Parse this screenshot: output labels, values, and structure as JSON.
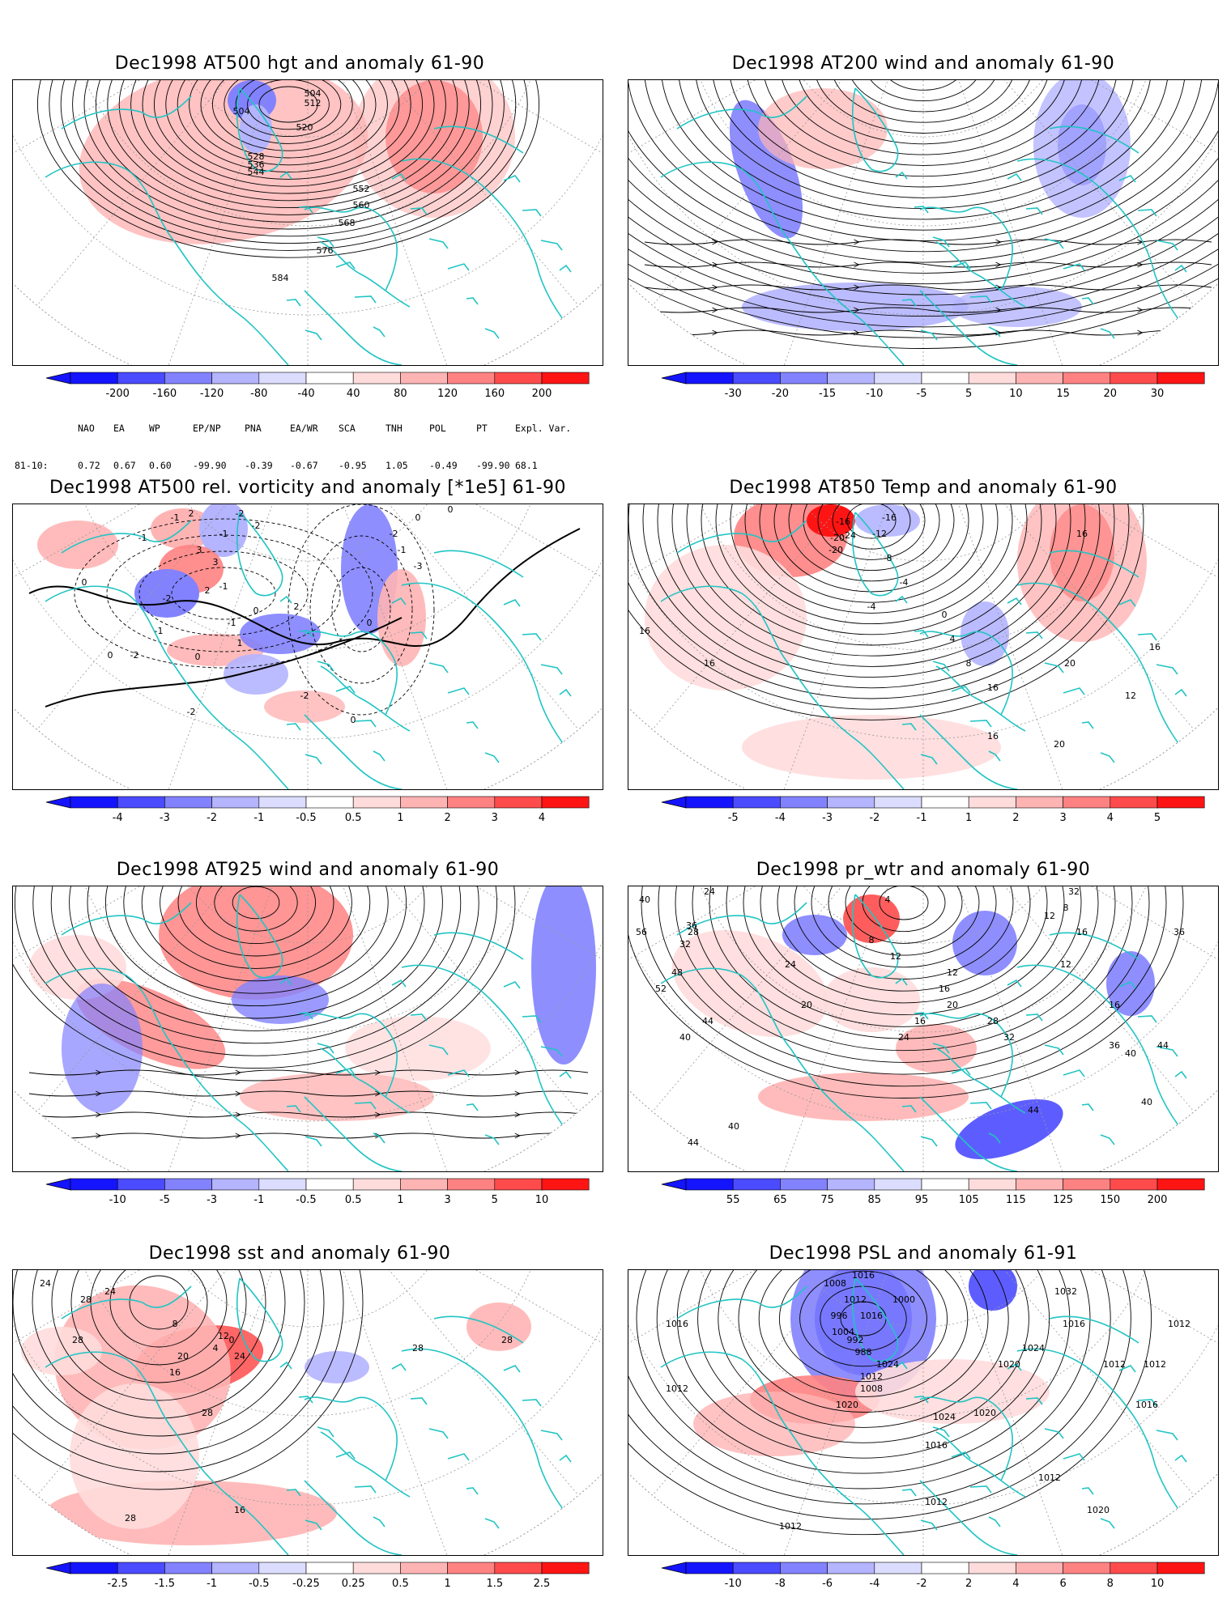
{
  "panels": [
    {
      "title": "Dec1998 AT500 hgt and anomaly 61-90",
      "colorbar": {
        "labels": [
          "-200",
          "-160",
          "-120",
          "-80",
          "-40",
          "40",
          "80",
          "120",
          "160",
          "200"
        ]
      },
      "contour_labels": [
        "504",
        "512",
        "520",
        "504",
        "528",
        "536",
        "544",
        "552",
        "560",
        "568",
        "576",
        "584"
      ]
    },
    {
      "title": "Dec1998 AT200 wind and anomaly 61-90",
      "colorbar": {
        "labels": [
          "-30",
          "-20",
          "-15",
          "-10",
          "-5",
          "5",
          "10",
          "15",
          "20",
          "30"
        ]
      },
      "contour_labels": []
    },
    {
      "title": "Dec1998 AT500 rel. vorticity and anomaly [*1e5] 61-90",
      "colorbar": {
        "labels": [
          "-4",
          "-3",
          "-2",
          "-1",
          "-0.5",
          "0.5",
          "1",
          "2",
          "3",
          "4"
        ]
      },
      "contour_labels": [
        "0",
        "0",
        "0",
        "0",
        "0",
        "-2",
        "-1",
        "-1",
        "-2",
        "2",
        "3",
        "3",
        "2",
        "-1",
        "1",
        "-2",
        "-2",
        "-1",
        "-1",
        "2",
        "-2",
        "-2",
        "-1",
        "-1",
        "-2",
        "-3",
        "0",
        "0",
        "0"
      ]
    },
    {
      "title": "Dec1998 AT850 Temp and anomaly 61-90",
      "colorbar": {
        "labels": [
          "-5",
          "-4",
          "-3",
          "-2",
          "-1",
          "1",
          "2",
          "3",
          "4",
          "5"
        ]
      },
      "contour_labels": [
        "16",
        "16",
        "-20",
        "-16",
        "-24",
        "-20",
        "-16",
        "-12",
        "-8",
        "-4",
        "0",
        "4",
        "8",
        "16",
        "16",
        "12",
        "16",
        "20",
        "20",
        "16",
        "-4"
      ]
    },
    {
      "title": "Dec1998 AT925 wind and anomaly 61-90",
      "colorbar": {
        "labels": [
          "-10",
          "-5",
          "-3",
          "-1",
          "-0.5",
          "0.5",
          "1",
          "3",
          "5",
          "10"
        ]
      },
      "contour_labels": []
    },
    {
      "title": "Dec1998 pr_wtr and anomaly 61-90",
      "colorbar": {
        "labels": [
          "55",
          "65",
          "75",
          "85",
          "95",
          "105",
          "115",
          "125",
          "150",
          "200"
        ]
      },
      "contour_labels": [
        "24",
        "28",
        "32",
        "36",
        "40",
        "44",
        "48",
        "52",
        "56",
        "44",
        "40",
        "40",
        "20",
        "24",
        "16",
        "12",
        "8",
        "4",
        "12",
        "16",
        "20",
        "24",
        "28",
        "32",
        "36",
        "40",
        "44",
        "36",
        "32",
        "8",
        "12",
        "16",
        "12",
        "16",
        "40",
        "44"
      ]
    },
    {
      "title": "Dec1998 sst and anomaly 61-90",
      "colorbar": {
        "labels": [
          "-2.5",
          "-1.5",
          "-1",
          "-0.5",
          "-0.25",
          "0.25",
          "0.5",
          "1",
          "1.5",
          "2.5"
        ]
      },
      "contour_labels": [
        "24",
        "28",
        "28",
        "24",
        "28",
        "8",
        "12",
        "16",
        "20",
        "4",
        "0",
        "24",
        "28",
        "16",
        "28",
        "28"
      ]
    },
    {
      "title": "Dec1998 PSL and anomaly 61-91",
      "colorbar": {
        "labels": [
          "-10",
          "-8",
          "-6",
          "-4",
          "-2",
          "2",
          "4",
          "6",
          "8",
          "10"
        ]
      },
      "contour_labels": [
        "1008",
        "1016",
        "1012",
        "1000",
        "996",
        "1016",
        "1004",
        "992",
        "988",
        "1012",
        "1008",
        "1024",
        "1020",
        "1016",
        "1012",
        "1024",
        "1020",
        "1024",
        "1020",
        "1016",
        "1012",
        "1012",
        "1020",
        "1016",
        "1012",
        "1012",
        "1032",
        "1016",
        "1012",
        "1012"
      ]
    }
  ],
  "teleconnection": {
    "headers": [
      "NAO",
      "EA",
      "WP",
      "EP/NP",
      "PNA",
      "EA/WR",
      "SCA",
      "TNH",
      "POL",
      "PT",
      "Expl. Var."
    ],
    "row_label": "81-10:",
    "values": [
      "0.72",
      "0.67",
      "0.60",
      "-99.90",
      "-0.39",
      "-0.67",
      "-0.95",
      "1.05",
      "-0.49",
      "-99.90",
      "68.1"
    ]
  },
  "palette_blue_to_red": [
    "#1414ff",
    "#4b4bff",
    "#8282ff",
    "#b4b4ff",
    "#dcdcff",
    "#ffffff",
    "#ffdcdc",
    "#ffb4b4",
    "#ff8282",
    "#ff4b4b",
    "#ff1414"
  ],
  "coastline_color": "#21c4c4"
}
